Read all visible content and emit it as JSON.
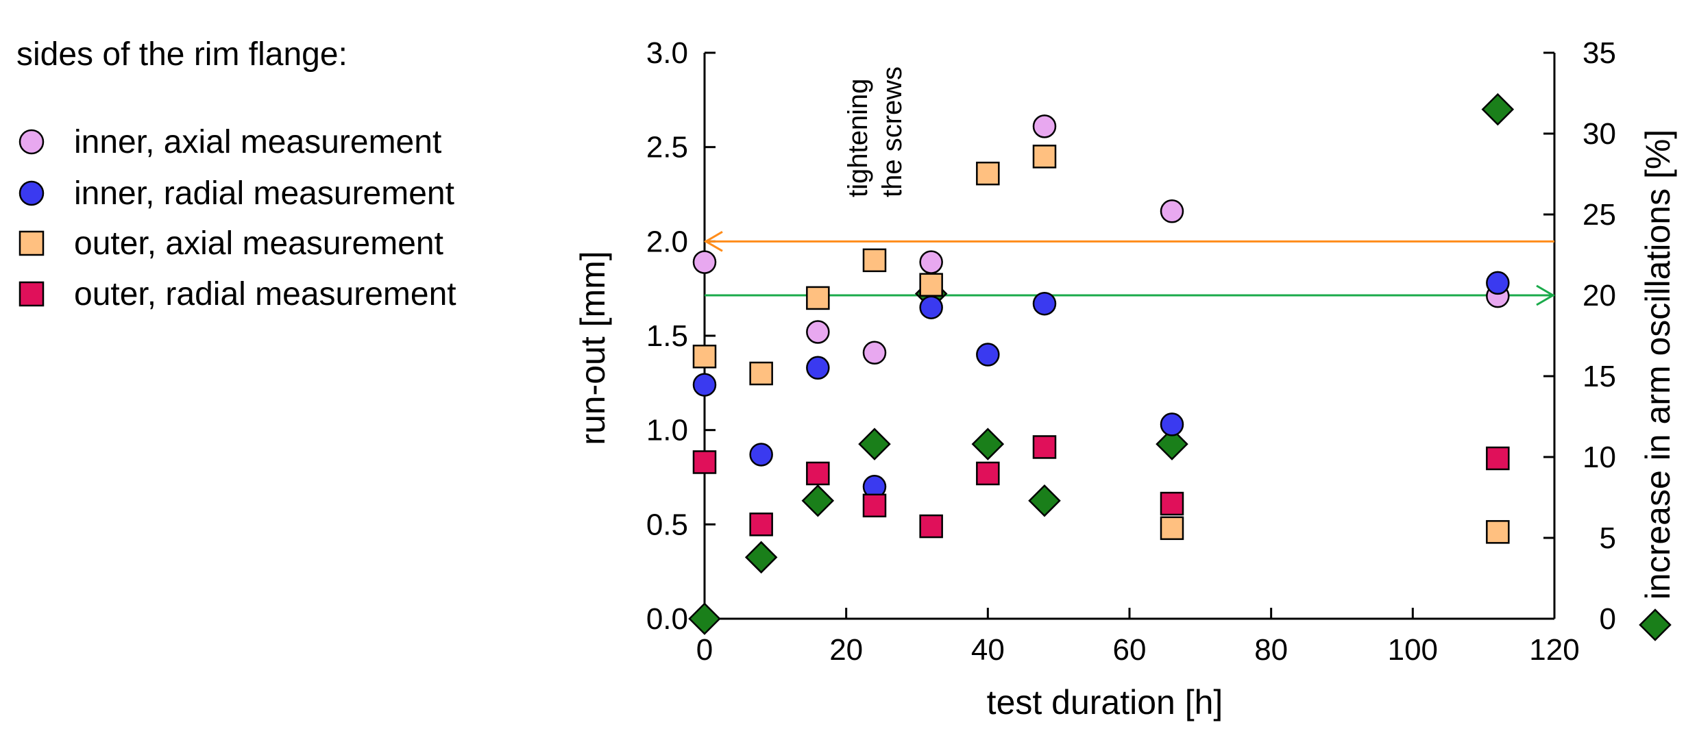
{
  "legend": {
    "title": "sides of the rim flange:",
    "items": [
      {
        "label": "inner, axial measurement",
        "marker": "circle",
        "color": "#E8A8F0"
      },
      {
        "label": "inner, radial measurement",
        "marker": "circle",
        "color": "#3A3AF0"
      },
      {
        "label": "outer, axial measurement",
        "marker": "square",
        "color": "#FFC080"
      },
      {
        "label": "outer, radial measurement",
        "marker": "square",
        "color": "#E0105A"
      }
    ]
  },
  "chart_data": {
    "type": "scatter",
    "xlabel": "test duration [h]",
    "ylabel": "run-out [mm]",
    "y2label": "increase in arm oscillations [%]",
    "xlim": [
      0,
      120
    ],
    "ylim": [
      0,
      3.0
    ],
    "y2lim": [
      0,
      35
    ],
    "xticks": [
      0,
      20,
      40,
      60,
      80,
      100,
      120
    ],
    "yticks": [
      "0.0",
      "0.5",
      "1.0",
      "1.5",
      "2.0",
      "2.5",
      "3.0"
    ],
    "y2ticks": [
      0,
      5,
      10,
      15,
      20,
      25,
      30,
      35
    ],
    "grid": false,
    "annotation": {
      "lines": [
        "tightening",
        "the screws"
      ],
      "x": 32
    },
    "arrows": [
      {
        "axis": "left",
        "y": 2.0,
        "direction": "left",
        "color": "#FF8C1A"
      },
      {
        "axis": "right",
        "y": 20,
        "direction": "right",
        "color": "#1AAA4A"
      }
    ],
    "series": [
      {
        "name": "inner, axial measurement",
        "marker": "circle",
        "color": "#E8A8F0",
        "axis": "left",
        "x": [
          0,
          16,
          24,
          32,
          48,
          66,
          112
        ],
        "y": [
          1.89,
          1.52,
          1.41,
          1.89,
          2.61,
          2.16,
          1.71
        ]
      },
      {
        "name": "inner, radial measurement",
        "marker": "circle",
        "color": "#3A3AF0",
        "axis": "left",
        "x": [
          0,
          8,
          16,
          24,
          32,
          40,
          48,
          66,
          112
        ],
        "y": [
          1.24,
          0.87,
          1.33,
          0.7,
          1.65,
          1.4,
          1.67,
          1.03,
          1.78
        ]
      },
      {
        "name": "outer, axial measurement",
        "marker": "square",
        "color": "#FFC080",
        "axis": "left",
        "x": [
          0,
          8,
          16,
          24,
          32,
          40,
          48,
          66,
          112
        ],
        "y": [
          1.39,
          1.3,
          1.7,
          1.9,
          1.77,
          2.36,
          2.45,
          0.48,
          0.46
        ]
      },
      {
        "name": "outer, radial measurement",
        "marker": "square",
        "color": "#E0105A",
        "axis": "left",
        "x": [
          0,
          8,
          16,
          24,
          32,
          40,
          48,
          66,
          112
        ],
        "y": [
          0.83,
          0.5,
          0.77,
          0.6,
          0.49,
          0.77,
          0.91,
          0.61,
          0.85
        ]
      },
      {
        "marker": "diamond",
        "color": "#1A7F1A",
        "axis": "right",
        "x": [
          0,
          8,
          16,
          24,
          32,
          40,
          48,
          66,
          112
        ],
        "y": [
          0,
          3.8,
          7.3,
          10.8,
          20.1,
          10.8,
          7.3,
          10.8,
          31.5
        ]
      }
    ]
  }
}
